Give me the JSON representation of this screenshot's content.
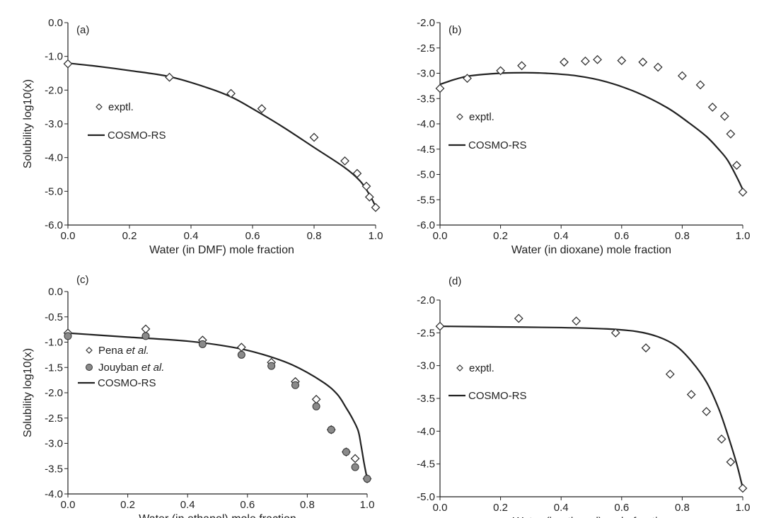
{
  "figure": {
    "title": ""
  },
  "colors": {
    "axis": "#222222",
    "line": "#222222",
    "marker_edge": "#333333",
    "marker_fill_open": "#ffffff",
    "marker_fill_gray": "#8a8a8a"
  },
  "chart_data": [
    {
      "type": "scatter",
      "panel_label": "(a)",
      "xlabel": "Water (in DMF) mole fraction",
      "ylabel": "Solubility log10(x)",
      "xlim": [
        0,
        1
      ],
      "ylim": [
        -6,
        0
      ],
      "xticks": [
        "0.0",
        "0.2",
        "0.4",
        "0.6",
        "0.8",
        "1.0"
      ],
      "yticks": [
        "0.0",
        "-1.0",
        "-2.0",
        "-3.0",
        "-4.0",
        "-5.0",
        "-6.0"
      ],
      "legend": [
        {
          "label": "exptl.",
          "kind": "open-diamond"
        },
        {
          "label": "COSMO-RS",
          "kind": "line"
        }
      ],
      "series": [
        {
          "name": "exptl.",
          "marker": "open-diamond",
          "x": [
            0.0,
            0.33,
            0.53,
            0.63,
            0.8,
            0.9,
            0.94,
            0.97,
            0.98,
            1.0
          ],
          "y": [
            -1.22,
            -1.62,
            -2.1,
            -2.55,
            -3.4,
            -4.1,
            -4.47,
            -4.85,
            -5.17,
            -5.48
          ]
        },
        {
          "name": "COSMO-RS",
          "marker": "line",
          "x": [
            0.0,
            0.1,
            0.2,
            0.33,
            0.45,
            0.53,
            0.6,
            0.7,
            0.8,
            0.9,
            0.95,
            0.98,
            1.0
          ],
          "y": [
            -1.2,
            -1.3,
            -1.42,
            -1.6,
            -1.92,
            -2.2,
            -2.55,
            -3.1,
            -3.7,
            -4.3,
            -4.7,
            -5.1,
            -5.45
          ]
        }
      ]
    },
    {
      "type": "scatter",
      "panel_label": "(b)",
      "xlabel": "Water (in dioxane) mole fraction",
      "ylabel": "",
      "xlim": [
        0,
        1
      ],
      "ylim": [
        -6,
        -2
      ],
      "xticks": [
        "0.0",
        "0.2",
        "0.4",
        "0.6",
        "0.8",
        "1.0"
      ],
      "yticks": [
        "-2.0",
        "-2.5",
        "-3.0",
        "-3.5",
        "-4.0",
        "-4.5",
        "-5.0",
        "-5.5",
        "-6.0"
      ],
      "legend": [
        {
          "label": "exptl.",
          "kind": "open-diamond"
        },
        {
          "label": "COSMO-RS",
          "kind": "line"
        }
      ],
      "series": [
        {
          "name": "exptl.",
          "marker": "open-diamond",
          "x": [
            0.0,
            0.09,
            0.2,
            0.27,
            0.41,
            0.48,
            0.52,
            0.6,
            0.67,
            0.72,
            0.8,
            0.86,
            0.9,
            0.94,
            0.96,
            0.98,
            1.0
          ],
          "y": [
            -3.3,
            -3.1,
            -2.95,
            -2.85,
            -2.78,
            -2.76,
            -2.73,
            -2.75,
            -2.78,
            -2.88,
            -3.05,
            -3.23,
            -3.67,
            -3.85,
            -4.2,
            -4.82,
            -5.35
          ]
        },
        {
          "name": "COSMO-RS",
          "marker": "line",
          "x": [
            0.0,
            0.05,
            0.1,
            0.2,
            0.28,
            0.35,
            0.45,
            0.55,
            0.65,
            0.75,
            0.82,
            0.88,
            0.92,
            0.95,
            0.98,
            1.0
          ],
          "y": [
            -3.22,
            -3.12,
            -3.05,
            -3.0,
            -2.99,
            -3.0,
            -3.05,
            -3.17,
            -3.38,
            -3.68,
            -3.97,
            -4.25,
            -4.5,
            -4.72,
            -5.05,
            -5.3
          ]
        }
      ]
    },
    {
      "type": "scatter",
      "panel_label": "(c)",
      "xlabel": "Water (in ethanol) mole fraction",
      "ylabel": "Solubility log10(x)",
      "xlim": [
        0,
        1
      ],
      "ylim": [
        -4,
        0
      ],
      "xticks": [
        "0.0",
        "0.2",
        "0.4",
        "0.6",
        "0.8",
        "1.0"
      ],
      "yticks": [
        "0.0",
        "-0.5",
        "-1.0",
        "-1.5",
        "-2.0",
        "-2.5",
        "-3.0",
        "-3.5",
        "-4.0"
      ],
      "legend": [
        {
          "label_main": "Pena ",
          "label_italic": "et al.",
          "kind": "open-diamond"
        },
        {
          "label_main": "Jouyban ",
          "label_italic": "et al.",
          "kind": "gray-circle"
        },
        {
          "label_main": "COSMO-RS",
          "label_italic": "",
          "kind": "line"
        }
      ],
      "series": [
        {
          "name": "Pena et al.",
          "marker": "open-diamond",
          "x": [
            0.0,
            0.26,
            0.45,
            0.58,
            0.68,
            0.76,
            0.83,
            0.88,
            0.93,
            0.96,
            1.0
          ],
          "y": [
            -0.82,
            -0.74,
            -0.96,
            -1.1,
            -1.4,
            -1.78,
            -2.13,
            -2.73,
            -3.17,
            -3.3,
            -3.7
          ]
        },
        {
          "name": "Jouyban et al.",
          "marker": "gray-circle",
          "x": [
            0.0,
            0.26,
            0.45,
            0.58,
            0.68,
            0.76,
            0.83,
            0.88,
            0.93,
            0.96,
            1.0
          ],
          "y": [
            -0.88,
            -0.88,
            -1.04,
            -1.25,
            -1.47,
            -1.85,
            -2.27,
            -2.73,
            -3.17,
            -3.47,
            -3.7
          ]
        },
        {
          "name": "COSMO-RS",
          "marker": "line",
          "x": [
            0.0,
            0.2,
            0.4,
            0.55,
            0.65,
            0.75,
            0.85,
            0.9,
            0.93,
            0.95,
            0.97,
            0.98,
            0.99,
            1.0
          ],
          "y": [
            -0.82,
            -0.9,
            -0.98,
            -1.1,
            -1.24,
            -1.45,
            -1.78,
            -2.03,
            -2.3,
            -2.5,
            -2.75,
            -3.05,
            -3.4,
            -3.7
          ]
        }
      ]
    },
    {
      "type": "scatter",
      "panel_label": "(d)",
      "xlabel": "Water (in ethanol) mole fraction",
      "ylabel": "",
      "xlim": [
        0,
        1
      ],
      "ylim": [
        -5,
        -2
      ],
      "xticks": [
        "0.0",
        "0.2",
        "0.4",
        "0.6",
        "0.8",
        "1.0"
      ],
      "yticks": [
        "-2.0",
        "-2.5",
        "-3.0",
        "-3.5",
        "-4.0",
        "-4.5",
        "-5.0"
      ],
      "legend": [
        {
          "label": "exptl.",
          "kind": "open-diamond"
        },
        {
          "label": "COSMO-RS",
          "kind": "line"
        }
      ],
      "series": [
        {
          "name": "exptl.",
          "marker": "open-diamond",
          "x": [
            0.0,
            0.26,
            0.45,
            0.58,
            0.68,
            0.76,
            0.83,
            0.88,
            0.93,
            0.96,
            1.0
          ],
          "y": [
            -2.4,
            -2.28,
            -2.32,
            -2.5,
            -2.73,
            -3.13,
            -3.44,
            -3.7,
            -4.12,
            -4.47,
            -4.87
          ]
        },
        {
          "name": "COSMO-RS",
          "marker": "line",
          "x": [
            0.0,
            0.2,
            0.4,
            0.55,
            0.65,
            0.72,
            0.78,
            0.83,
            0.88,
            0.92,
            0.95,
            0.98,
            1.0
          ],
          "y": [
            -2.4,
            -2.41,
            -2.42,
            -2.44,
            -2.48,
            -2.56,
            -2.7,
            -2.93,
            -3.25,
            -3.65,
            -4.05,
            -4.5,
            -4.87
          ]
        }
      ]
    }
  ]
}
